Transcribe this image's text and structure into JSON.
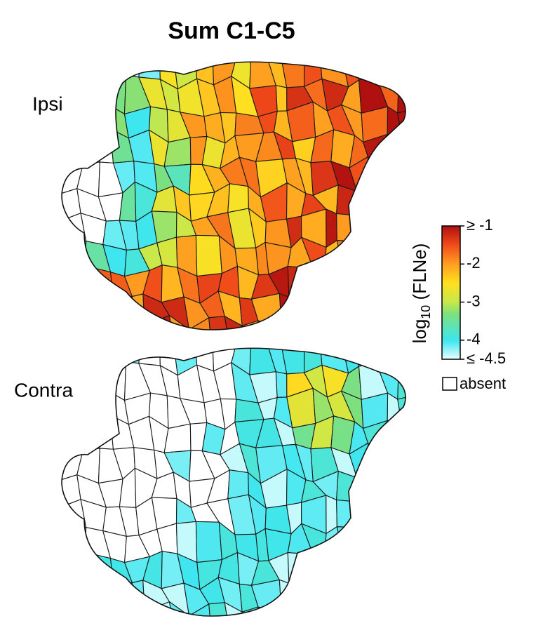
{
  "title": "Sum C1-C5",
  "panels": [
    {
      "label": "Ipsi"
    },
    {
      "label": "Contra"
    }
  ],
  "colorbar": {
    "label_main": "log",
    "label_sub": "10",
    "label_rest": " (FLNe)",
    "lim": [
      -4.5,
      -1
    ],
    "ticks": [
      {
        "value": -1,
        "label": "≥ -1"
      },
      -2,
      -3,
      -4,
      {
        "value": -4.5,
        "label": "≤ -4.5"
      }
    ],
    "absent_label": "absent"
  }
}
